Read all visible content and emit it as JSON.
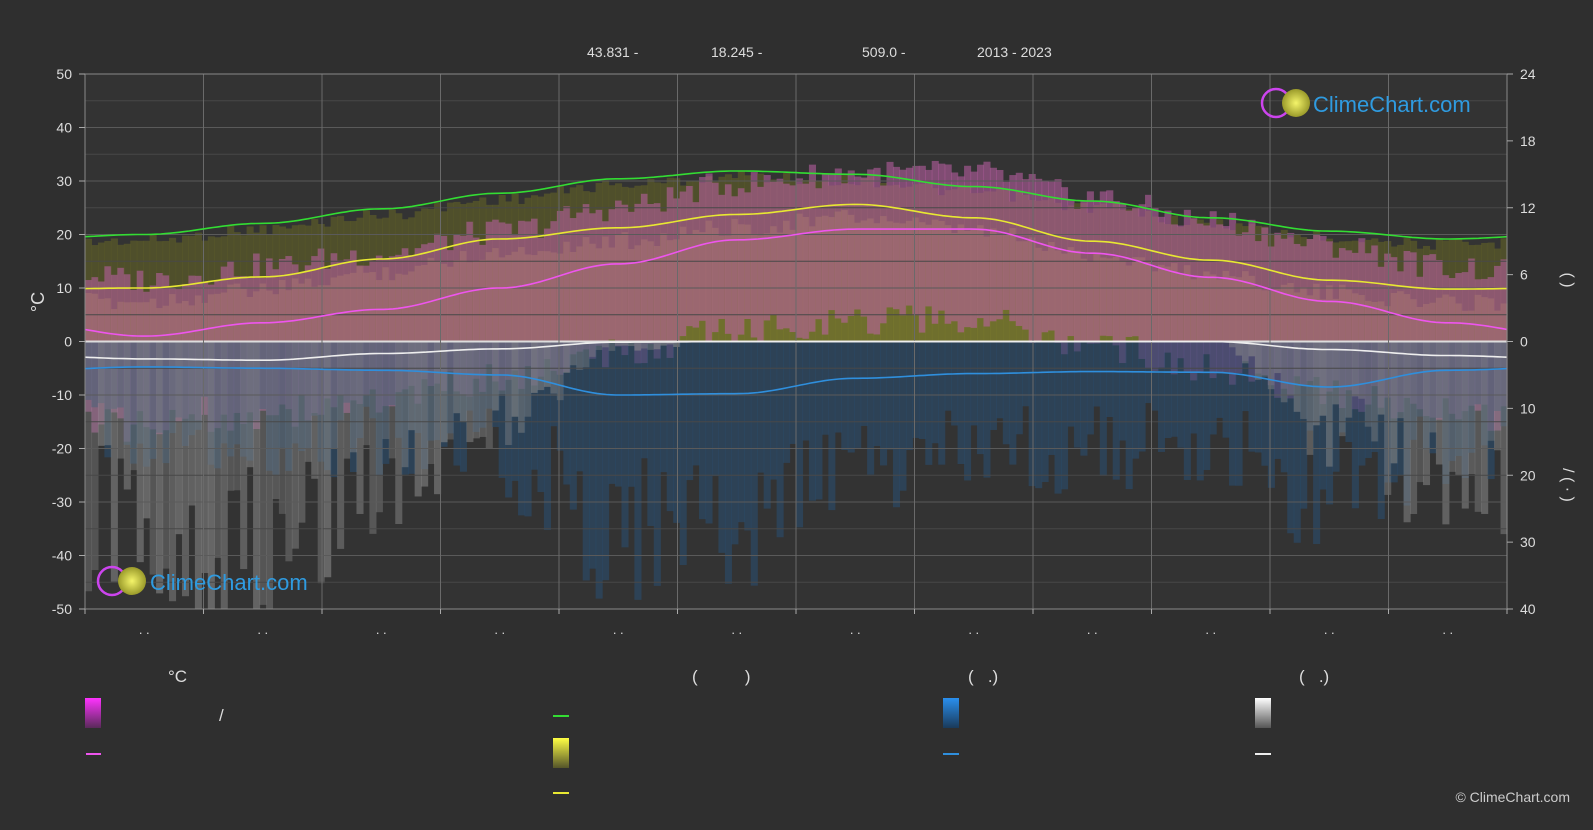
{
  "header": {
    "lat": "43.831 -",
    "lon": "18.245 -",
    "elevation": "509.0 -",
    "years": "2013 - 2023"
  },
  "brand": {
    "name": "ClimeChart.com",
    "copyright": "© ClimeChart.com",
    "text_color": "#2f9be0"
  },
  "chart_data": {
    "type": "line",
    "title": "",
    "x_count": 12,
    "x_tick_labels": [
      ". .",
      ". .",
      ". .",
      ". .",
      ". .",
      ". .",
      ". .",
      ". .",
      ". .",
      ". .",
      ". .",
      ". ."
    ],
    "left_axis": {
      "label": "°C",
      "ylim": [
        -50,
        50
      ],
      "ticks": [
        50,
        40,
        30,
        20,
        10,
        0,
        -10,
        -20,
        -30,
        -40,
        -50
      ]
    },
    "right_axis_top": {
      "label": "(     )",
      "ylim": [
        0,
        24
      ],
      "ticks": [
        24,
        18,
        12,
        6,
        0
      ]
    },
    "right_axis_bottom": {
      "label": "/   (  ·  )",
      "ylim": [
        0,
        40
      ],
      "ticks": [
        0,
        10,
        20,
        30,
        40
      ]
    },
    "grid": true,
    "series": [
      {
        "key": "daylight",
        "color": "#33dd33",
        "axis": "hours",
        "values": [
          9.6,
          10.6,
          11.9,
          13.3,
          14.6,
          15.3,
          15.0,
          13.9,
          12.6,
          11.1,
          9.9,
          9.2
        ]
      },
      {
        "key": "sunshine",
        "color": "#e8e832",
        "axis": "hours",
        "values": [
          4.8,
          5.8,
          7.4,
          9.2,
          10.2,
          11.4,
          12.3,
          11.1,
          9.0,
          7.3,
          5.5,
          4.7
        ]
      },
      {
        "key": "temp_max",
        "color": "#ee55ee",
        "axis": "temp",
        "values": [
          1.0,
          3.5,
          6.0,
          10.0,
          14.5,
          19.0,
          21.0,
          21.0,
          16.5,
          12.0,
          7.5,
          3.5
        ]
      },
      {
        "key": "snow",
        "color": "#eeeeee",
        "axis": "precip",
        "values": [
          2.6,
          2.8,
          1.8,
          1.1,
          0.1,
          0.0,
          0.0,
          0.0,
          0.0,
          0.0,
          1.2,
          2.1
        ]
      },
      {
        "key": "rain",
        "color": "#2f8fdd",
        "axis": "precip",
        "values": [
          3.8,
          4.0,
          4.3,
          5.0,
          8.0,
          7.8,
          5.5,
          4.8,
          4.5,
          4.6,
          6.8,
          4.3
        ]
      }
    ]
  },
  "legend": {
    "groups": [
      {
        "heading": "°C",
        "items": [
          {
            "swatch": "grad-magenta",
            "label": "/"
          },
          {
            "swatch": "line-magenta",
            "label": ""
          }
        ]
      },
      {
        "heading": "(          )",
        "items": [
          {
            "swatch": "line-green",
            "label": ""
          },
          {
            "swatch": "grad-yellow",
            "label": ""
          },
          {
            "swatch": "line-yellow",
            "label": ""
          }
        ]
      },
      {
        "heading": "(   .)",
        "items": [
          {
            "swatch": "grad-blue",
            "label": ""
          },
          {
            "swatch": "line-blue",
            "label": ""
          }
        ]
      },
      {
        "heading": "(   .)",
        "items": [
          {
            "swatch": "grad-white",
            "label": ""
          },
          {
            "swatch": "line-white",
            "label": ""
          }
        ]
      }
    ]
  }
}
